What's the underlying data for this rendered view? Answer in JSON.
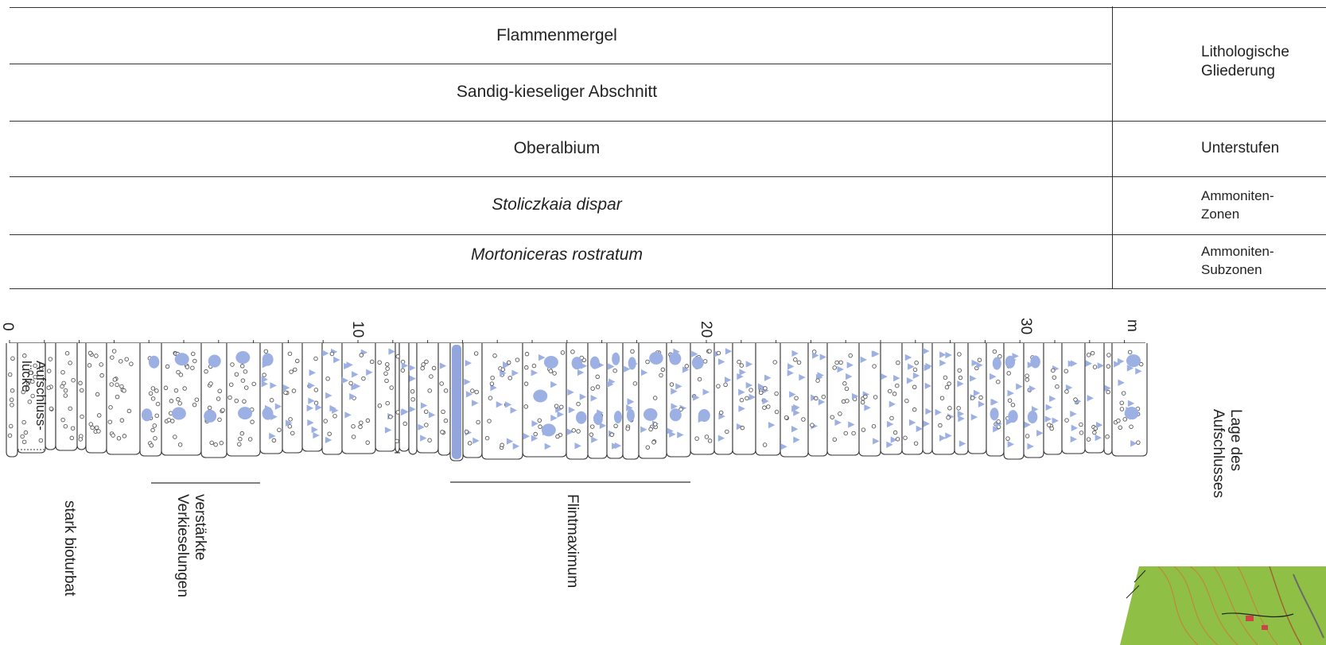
{
  "rows": {
    "lith_1": "Flammenmergel",
    "lith_2": "Sandig-kieseliger Abschnitt",
    "unterstufe": "Oberalbium",
    "zone": "Stoliczkaia dispar",
    "subzone": "Mortoniceras rostratum"
  },
  "side": {
    "lithologische": "Lithologische",
    "gliederung": "Gliederung",
    "unterstufen": "Unterstufen",
    "ammonitenzonen_1": "Ammoniten-",
    "ammonitenzonen_2": "Zonen",
    "ammonitensub_1": "Ammoniten-",
    "ammonitensub_2": "Subzonen"
  },
  "scale": {
    "t0": "0",
    "t10": "10",
    "t20": "20",
    "t30": "30",
    "unit": "m"
  },
  "labels": {
    "aufschluss_1": "Aufschluss-",
    "aufschluss_2": "lücke",
    "bioturbat": "stark bioturbat",
    "verst_1": "verstärkte",
    "verst_2": "Verkieselungen",
    "flint": "Flintmaximum",
    "lage_1": "Lage des",
    "lage_2": "Aufschlusses"
  },
  "colors": {
    "flint_blue": "#9db0e4",
    "flint_blue_dark": "#7f95d6",
    "line": "#333333",
    "map_green": "#8fbf45"
  }
}
